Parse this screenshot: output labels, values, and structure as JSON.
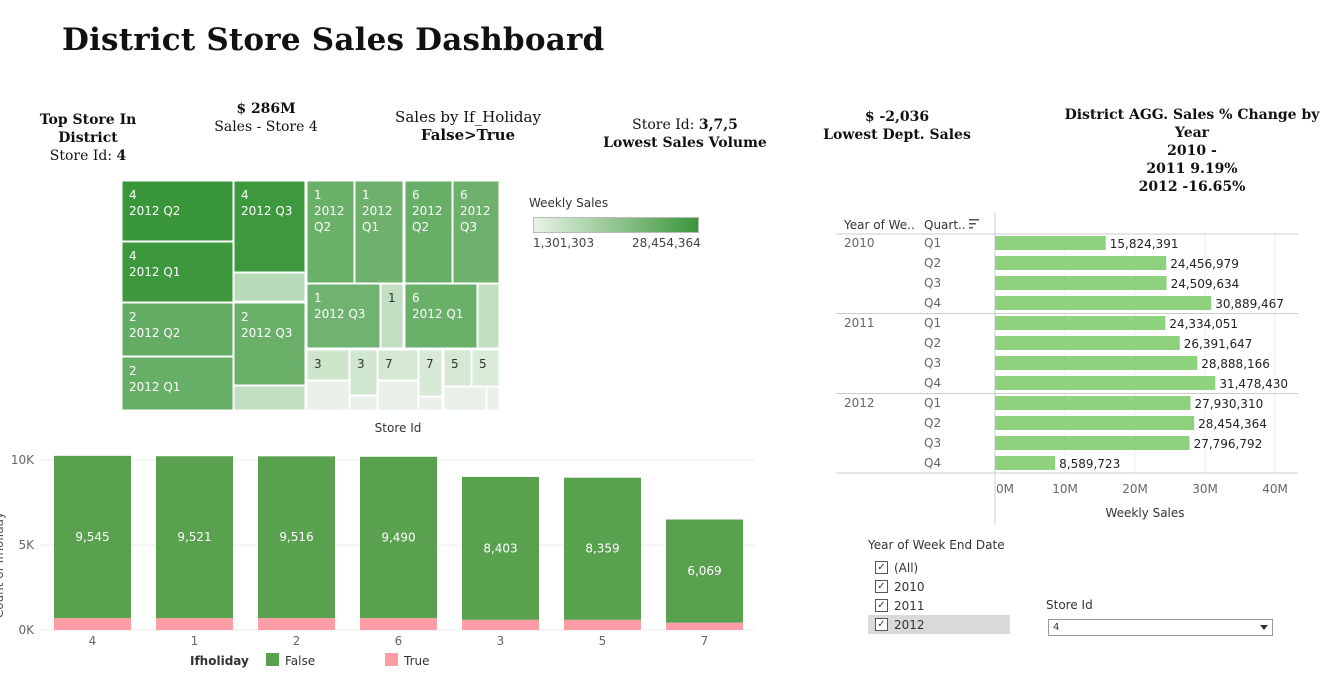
{
  "title": "District Store Sales Dashboard",
  "kpis": {
    "top_store_title": "Top Store In District",
    "top_store_prefix": "Store Id: ",
    "top_store_value": "4",
    "sales_value": "$ 286M",
    "sales_label": "Sales - Store 4",
    "holiday_title": "Sales by If_Holiday",
    "holiday_value": "False>True",
    "low_vol_prefix": "Store Id: ",
    "low_vol_stores": "3,7,5",
    "low_vol_label": "Lowest Sales Volume",
    "low_dept_value": "$ -2,036",
    "low_dept_label": "Lowest Dept. Sales",
    "pct_title": "District AGG. Sales % Change by Year",
    "pct_2010": "2010 -",
    "pct_2011": "2011 9.19%",
    "pct_2012": "2012 -16.65%"
  },
  "treemap_legend": {
    "title": "Weekly Sales",
    "min": "1,301,303",
    "max": "28,454,364",
    "color_low": "#e8f3e6",
    "color_high": "#3a963a"
  },
  "treemap_cells": [
    {
      "store": "4",
      "period": "2012 Q2",
      "value": 28454364
    },
    {
      "store": "4",
      "period": "2012 Q1",
      "value": 27930310
    },
    {
      "store": "4",
      "period": "2012 Q3",
      "value": 27796792
    },
    {
      "store": "4",
      "period": "",
      "value": 8589723
    },
    {
      "store": "2",
      "period": "2012 Q2",
      "value": 22000000
    },
    {
      "store": "2",
      "period": "2012 Q1",
      "value": 21500000
    },
    {
      "store": "2",
      "period": "2012 Q3",
      "value": 21000000
    },
    {
      "store": "2",
      "period": "",
      "value": 7000000
    },
    {
      "store": "1",
      "period": "2012\nQ2",
      "value": 21000000
    },
    {
      "store": "1",
      "period": "2012\nQ1",
      "value": 20500000
    },
    {
      "store": "1",
      "period": "2012 Q3",
      "value": 20000000
    },
    {
      "store": "1",
      "period": "",
      "value": 7000000
    },
    {
      "store": "6",
      "period": "2012\nQ2",
      "value": 21500000
    },
    {
      "store": "6",
      "period": "2012\nQ3",
      "value": 20500000
    },
    {
      "store": "6",
      "period": "2012 Q1",
      "value": 21000000
    },
    {
      "store": "6",
      "period": "",
      "value": 7000000
    },
    {
      "store": "3",
      "period": "",
      "value": 5500000
    },
    {
      "store": "3",
      "period": "",
      "value": 5000000
    },
    {
      "store": "7",
      "period": "",
      "value": 4500000
    },
    {
      "store": "7",
      "period": "",
      "value": 4000000
    },
    {
      "store": "5",
      "period": "",
      "value": 4500000
    },
    {
      "store": "5",
      "period": "",
      "value": 3500000
    }
  ],
  "chart_data": [
    {
      "type": "bar",
      "orientation": "horizontal",
      "title": "",
      "row_headers": [
        "Year of We..",
        "Quart.."
      ],
      "xlabel": "Weekly Sales",
      "xlim": [
        0,
        40000000
      ],
      "xticks": [
        "0M",
        "10M",
        "20M",
        "30M",
        "40M"
      ],
      "color": "#8fd27e",
      "rows": [
        {
          "year": "2010",
          "quarter": "Q1",
          "value": 15824391,
          "label": "15,824,391"
        },
        {
          "year": "",
          "quarter": "Q2",
          "value": 24456979,
          "label": "24,456,979"
        },
        {
          "year": "",
          "quarter": "Q3",
          "value": 24509634,
          "label": "24,509,634"
        },
        {
          "year": "",
          "quarter": "Q4",
          "value": 30889467,
          "label": "30,889,467"
        },
        {
          "year": "2011",
          "quarter": "Q1",
          "value": 24334051,
          "label": "24,334,051"
        },
        {
          "year": "",
          "quarter": "Q2",
          "value": 26391647,
          "label": "26,391,647"
        },
        {
          "year": "",
          "quarter": "Q3",
          "value": 28888166,
          "label": "28,888,166"
        },
        {
          "year": "",
          "quarter": "Q4",
          "value": 31478430,
          "label": "31,478,430"
        },
        {
          "year": "2012",
          "quarter": "Q1",
          "value": 27930310,
          "label": "27,930,310"
        },
        {
          "year": "",
          "quarter": "Q2",
          "value": 28454364,
          "label": "28,454,364"
        },
        {
          "year": "",
          "quarter": "Q3",
          "value": 27796792,
          "label": "27,796,792"
        },
        {
          "year": "",
          "quarter": "Q4",
          "value": 8589723,
          "label": "8,589,723"
        }
      ]
    },
    {
      "type": "bar",
      "stacked": true,
      "title": "Store Id",
      "ylabel": "Count of Ifholiday",
      "ylim": [
        0,
        10500
      ],
      "yticks": [
        "0K",
        "5K",
        "10K"
      ],
      "categories": [
        "4",
        "1",
        "2",
        "6",
        "3",
        "5",
        "7"
      ],
      "series": [
        {
          "name": "False",
          "color": "#59a14f",
          "values": [
            9545,
            9521,
            9516,
            9490,
            8403,
            8359,
            6069
          ],
          "labels": [
            "9,545",
            "9,521",
            "9,516",
            "9,490",
            "8,403",
            "8,359",
            "6,069"
          ]
        },
        {
          "name": "True",
          "color": "#ff9da7",
          "values": [
            700,
            700,
            700,
            700,
            600,
            600,
            430
          ]
        }
      ],
      "legend_title": "Ifholiday"
    }
  ],
  "filter": {
    "title": "Year of Week End Date",
    "options": [
      {
        "label": "(All)",
        "checked": true
      },
      {
        "label": "2010",
        "checked": true
      },
      {
        "label": "2011",
        "checked": true
      },
      {
        "label": "2012",
        "checked": true
      }
    ]
  },
  "store_select": {
    "title": "Store Id",
    "value": "4"
  }
}
